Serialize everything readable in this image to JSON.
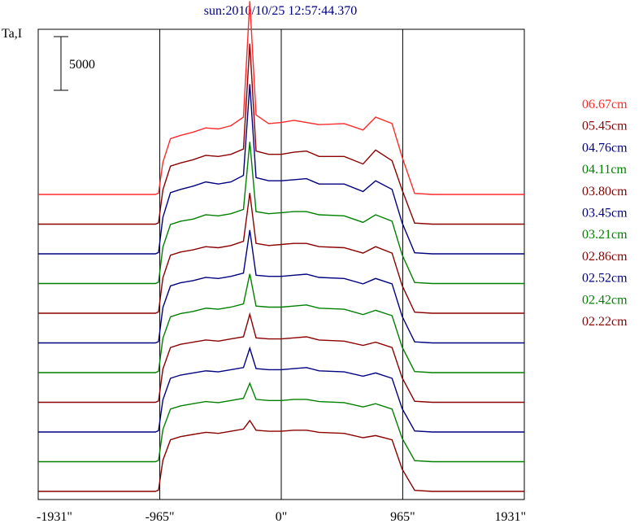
{
  "chart_data": {
    "type": "line",
    "title": "sun:2010/10/25 12:57:44.370",
    "ylabel": "Ta,I",
    "scale_bar_label": "5000",
    "x_ticks": [
      "-1931\"",
      "-965\"",
      "0\"",
      "965\"",
      "1931\""
    ],
    "x_tick_values": [
      -1931,
      -965,
      0,
      965,
      1931
    ],
    "xlim": [
      -1931,
      1931
    ],
    "vertical_lines": [
      -965,
      0,
      965
    ],
    "grid": false,
    "legend_position": "right",
    "series": [
      {
        "name": "06.67cm",
        "color": "#ff2a2a",
        "y": [
          0,
          0,
          0,
          0,
          0,
          0,
          0,
          120,
          3000,
          5200,
          5500,
          5800,
          6200,
          6100,
          6400,
          7200,
          18000,
          7400,
          6600,
          6700,
          6900,
          6700,
          6500,
          6600,
          6000,
          7200,
          6600,
          3500,
          100,
          0,
          0,
          0,
          0
        ]
      },
      {
        "name": "05.45cm",
        "color": "#8b0000",
        "y": [
          0,
          0,
          0,
          0,
          0,
          0,
          0,
          120,
          3200,
          5400,
          5700,
          6000,
          6400,
          6300,
          6500,
          7000,
          16800,
          6800,
          6500,
          6500,
          6700,
          6800,
          6300,
          6300,
          5600,
          6900,
          5900,
          3200,
          100,
          0,
          0,
          0,
          0
        ]
      },
      {
        "name": "04.76cm",
        "color": "#000080",
        "y": [
          0,
          0,
          0,
          0,
          0,
          0,
          0,
          120,
          3400,
          5700,
          6000,
          6300,
          6700,
          6500,
          6700,
          7300,
          15800,
          7100,
          6800,
          6800,
          6900,
          7000,
          6500,
          6500,
          5800,
          6800,
          6000,
          2900,
          100,
          0,
          0,
          0,
          0
        ]
      },
      {
        "name": "04.11cm",
        "color": "#008000",
        "y": [
          0,
          0,
          0,
          0,
          0,
          0,
          0,
          120,
          3400,
          5500,
          5800,
          6000,
          6400,
          6300,
          6500,
          6900,
          13200,
          6700,
          6500,
          6600,
          6700,
          6700,
          6400,
          6300,
          5700,
          6400,
          5800,
          2700,
          100,
          0,
          0,
          0,
          0
        ]
      },
      {
        "name": "03.80cm",
        "color": "#8b0000",
        "y": [
          0,
          0,
          0,
          0,
          0,
          0,
          0,
          120,
          3300,
          5400,
          5700,
          5900,
          6200,
          6100,
          6300,
          6700,
          11200,
          6500,
          6300,
          6400,
          6500,
          6500,
          6200,
          6100,
          5600,
          6200,
          5600,
          2600,
          100,
          0,
          0,
          0,
          0
        ]
      },
      {
        "name": "03.45cm",
        "color": "#000080",
        "y": [
          0,
          0,
          0,
          0,
          0,
          0,
          0,
          120,
          3300,
          5300,
          5600,
          5800,
          6100,
          6000,
          6200,
          6500,
          10500,
          6300,
          6200,
          6200,
          6300,
          6400,
          6100,
          6000,
          5500,
          6000,
          5500,
          2500,
          100,
          0,
          0,
          0,
          0
        ]
      },
      {
        "name": "03.21cm",
        "color": "#008000",
        "y": [
          0,
          0,
          0,
          0,
          0,
          0,
          0,
          120,
          3200,
          5200,
          5500,
          5700,
          6000,
          5900,
          6100,
          6400,
          9200,
          6200,
          6100,
          6100,
          6200,
          6300,
          6000,
          5900,
          5400,
          5800,
          5300,
          2400,
          100,
          0,
          0,
          0,
          0
        ]
      },
      {
        "name": "02.86cm",
        "color": "#8b0000",
        "y": [
          0,
          0,
          0,
          0,
          0,
          0,
          0,
          120,
          3100,
          5100,
          5400,
          5600,
          5800,
          5700,
          5900,
          6100,
          8200,
          6000,
          5900,
          5900,
          6000,
          6100,
          5800,
          5700,
          5300,
          5600,
          5100,
          2300,
          100,
          0,
          0,
          0,
          0
        ]
      },
      {
        "name": "02.52cm",
        "color": "#000080",
        "y": [
          0,
          0,
          0,
          0,
          0,
          0,
          0,
          120,
          3000,
          5000,
          5300,
          5500,
          5700,
          5600,
          5800,
          6000,
          7800,
          5900,
          5800,
          5800,
          5900,
          6000,
          5700,
          5600,
          5200,
          5500,
          5000,
          2200,
          100,
          0,
          0,
          0,
          0
        ]
      },
      {
        "name": "02.42cm",
        "color": "#008000",
        "y": [
          0,
          0,
          0,
          0,
          0,
          0,
          0,
          120,
          3000,
          4900,
          5200,
          5400,
          5600,
          5500,
          5700,
          5900,
          7300,
          5800,
          5700,
          5700,
          5800,
          5800,
          5600,
          5500,
          5100,
          5400,
          4900,
          2200,
          100,
          0,
          0,
          0,
          0
        ]
      },
      {
        "name": "02.22cm",
        "color": "#8b0000",
        "y": [
          0,
          0,
          0,
          0,
          0,
          0,
          0,
          120,
          2900,
          4800,
          5100,
          5300,
          5500,
          5400,
          5600,
          5800,
          6600,
          5700,
          5600,
          5600,
          5700,
          5700,
          5500,
          5400,
          5000,
          5200,
          4800,
          2100,
          100,
          0,
          0,
          0,
          0
        ]
      }
    ],
    "x": [
      -1931,
      -1700,
      -1500,
      -1300,
      -1150,
      -1060,
      -1000,
      -975,
      -940,
      -880,
      -800,
      -700,
      -600,
      -500,
      -400,
      -300,
      -250,
      -200,
      -100,
      0,
      100,
      200,
      300,
      500,
      650,
      750,
      880,
      960,
      1060,
      1200,
      1500,
      1700,
      1931
    ]
  }
}
